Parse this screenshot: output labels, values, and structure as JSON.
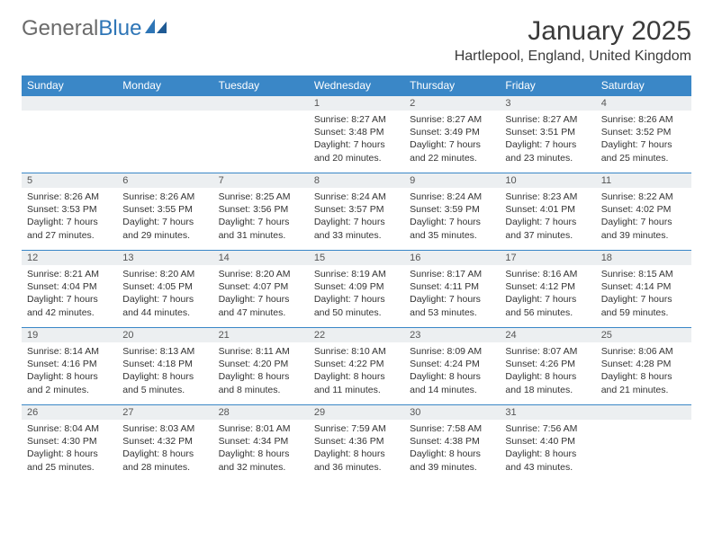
{
  "brand": {
    "part1": "General",
    "part2": "Blue"
  },
  "title": "January 2025",
  "location": "Hartlepool, England, United Kingdom",
  "colors": {
    "header_bg": "#3a87c7",
    "header_text": "#ffffff",
    "daynum_bg": "#eceff1",
    "border": "#3a87c7",
    "logo_gray": "#6b6b6b",
    "logo_blue": "#2e75b6",
    "text": "#333333"
  },
  "weekdays": [
    "Sunday",
    "Monday",
    "Tuesday",
    "Wednesday",
    "Thursday",
    "Friday",
    "Saturday"
  ],
  "weeks": [
    [
      {
        "empty": true
      },
      {
        "empty": true
      },
      {
        "empty": true
      },
      {
        "day": "1",
        "sunrise": "Sunrise: 8:27 AM",
        "sunset": "Sunset: 3:48 PM",
        "daylight1": "Daylight: 7 hours",
        "daylight2": "and 20 minutes."
      },
      {
        "day": "2",
        "sunrise": "Sunrise: 8:27 AM",
        "sunset": "Sunset: 3:49 PM",
        "daylight1": "Daylight: 7 hours",
        "daylight2": "and 22 minutes."
      },
      {
        "day": "3",
        "sunrise": "Sunrise: 8:27 AM",
        "sunset": "Sunset: 3:51 PM",
        "daylight1": "Daylight: 7 hours",
        "daylight2": "and 23 minutes."
      },
      {
        "day": "4",
        "sunrise": "Sunrise: 8:26 AM",
        "sunset": "Sunset: 3:52 PM",
        "daylight1": "Daylight: 7 hours",
        "daylight2": "and 25 minutes."
      }
    ],
    [
      {
        "day": "5",
        "sunrise": "Sunrise: 8:26 AM",
        "sunset": "Sunset: 3:53 PM",
        "daylight1": "Daylight: 7 hours",
        "daylight2": "and 27 minutes."
      },
      {
        "day": "6",
        "sunrise": "Sunrise: 8:26 AM",
        "sunset": "Sunset: 3:55 PM",
        "daylight1": "Daylight: 7 hours",
        "daylight2": "and 29 minutes."
      },
      {
        "day": "7",
        "sunrise": "Sunrise: 8:25 AM",
        "sunset": "Sunset: 3:56 PM",
        "daylight1": "Daylight: 7 hours",
        "daylight2": "and 31 minutes."
      },
      {
        "day": "8",
        "sunrise": "Sunrise: 8:24 AM",
        "sunset": "Sunset: 3:57 PM",
        "daylight1": "Daylight: 7 hours",
        "daylight2": "and 33 minutes."
      },
      {
        "day": "9",
        "sunrise": "Sunrise: 8:24 AM",
        "sunset": "Sunset: 3:59 PM",
        "daylight1": "Daylight: 7 hours",
        "daylight2": "and 35 minutes."
      },
      {
        "day": "10",
        "sunrise": "Sunrise: 8:23 AM",
        "sunset": "Sunset: 4:01 PM",
        "daylight1": "Daylight: 7 hours",
        "daylight2": "and 37 minutes."
      },
      {
        "day": "11",
        "sunrise": "Sunrise: 8:22 AM",
        "sunset": "Sunset: 4:02 PM",
        "daylight1": "Daylight: 7 hours",
        "daylight2": "and 39 minutes."
      }
    ],
    [
      {
        "day": "12",
        "sunrise": "Sunrise: 8:21 AM",
        "sunset": "Sunset: 4:04 PM",
        "daylight1": "Daylight: 7 hours",
        "daylight2": "and 42 minutes."
      },
      {
        "day": "13",
        "sunrise": "Sunrise: 8:20 AM",
        "sunset": "Sunset: 4:05 PM",
        "daylight1": "Daylight: 7 hours",
        "daylight2": "and 44 minutes."
      },
      {
        "day": "14",
        "sunrise": "Sunrise: 8:20 AM",
        "sunset": "Sunset: 4:07 PM",
        "daylight1": "Daylight: 7 hours",
        "daylight2": "and 47 minutes."
      },
      {
        "day": "15",
        "sunrise": "Sunrise: 8:19 AM",
        "sunset": "Sunset: 4:09 PM",
        "daylight1": "Daylight: 7 hours",
        "daylight2": "and 50 minutes."
      },
      {
        "day": "16",
        "sunrise": "Sunrise: 8:17 AM",
        "sunset": "Sunset: 4:11 PM",
        "daylight1": "Daylight: 7 hours",
        "daylight2": "and 53 minutes."
      },
      {
        "day": "17",
        "sunrise": "Sunrise: 8:16 AM",
        "sunset": "Sunset: 4:12 PM",
        "daylight1": "Daylight: 7 hours",
        "daylight2": "and 56 minutes."
      },
      {
        "day": "18",
        "sunrise": "Sunrise: 8:15 AM",
        "sunset": "Sunset: 4:14 PM",
        "daylight1": "Daylight: 7 hours",
        "daylight2": "and 59 minutes."
      }
    ],
    [
      {
        "day": "19",
        "sunrise": "Sunrise: 8:14 AM",
        "sunset": "Sunset: 4:16 PM",
        "daylight1": "Daylight: 8 hours",
        "daylight2": "and 2 minutes."
      },
      {
        "day": "20",
        "sunrise": "Sunrise: 8:13 AM",
        "sunset": "Sunset: 4:18 PM",
        "daylight1": "Daylight: 8 hours",
        "daylight2": "and 5 minutes."
      },
      {
        "day": "21",
        "sunrise": "Sunrise: 8:11 AM",
        "sunset": "Sunset: 4:20 PM",
        "daylight1": "Daylight: 8 hours",
        "daylight2": "and 8 minutes."
      },
      {
        "day": "22",
        "sunrise": "Sunrise: 8:10 AM",
        "sunset": "Sunset: 4:22 PM",
        "daylight1": "Daylight: 8 hours",
        "daylight2": "and 11 minutes."
      },
      {
        "day": "23",
        "sunrise": "Sunrise: 8:09 AM",
        "sunset": "Sunset: 4:24 PM",
        "daylight1": "Daylight: 8 hours",
        "daylight2": "and 14 minutes."
      },
      {
        "day": "24",
        "sunrise": "Sunrise: 8:07 AM",
        "sunset": "Sunset: 4:26 PM",
        "daylight1": "Daylight: 8 hours",
        "daylight2": "and 18 minutes."
      },
      {
        "day": "25",
        "sunrise": "Sunrise: 8:06 AM",
        "sunset": "Sunset: 4:28 PM",
        "daylight1": "Daylight: 8 hours",
        "daylight2": "and 21 minutes."
      }
    ],
    [
      {
        "day": "26",
        "sunrise": "Sunrise: 8:04 AM",
        "sunset": "Sunset: 4:30 PM",
        "daylight1": "Daylight: 8 hours",
        "daylight2": "and 25 minutes."
      },
      {
        "day": "27",
        "sunrise": "Sunrise: 8:03 AM",
        "sunset": "Sunset: 4:32 PM",
        "daylight1": "Daylight: 8 hours",
        "daylight2": "and 28 minutes."
      },
      {
        "day": "28",
        "sunrise": "Sunrise: 8:01 AM",
        "sunset": "Sunset: 4:34 PM",
        "daylight1": "Daylight: 8 hours",
        "daylight2": "and 32 minutes."
      },
      {
        "day": "29",
        "sunrise": "Sunrise: 7:59 AM",
        "sunset": "Sunset: 4:36 PM",
        "daylight1": "Daylight: 8 hours",
        "daylight2": "and 36 minutes."
      },
      {
        "day": "30",
        "sunrise": "Sunrise: 7:58 AM",
        "sunset": "Sunset: 4:38 PM",
        "daylight1": "Daylight: 8 hours",
        "daylight2": "and 39 minutes."
      },
      {
        "day": "31",
        "sunrise": "Sunrise: 7:56 AM",
        "sunset": "Sunset: 4:40 PM",
        "daylight1": "Daylight: 8 hours",
        "daylight2": "and 43 minutes."
      },
      {
        "empty": true
      }
    ]
  ]
}
